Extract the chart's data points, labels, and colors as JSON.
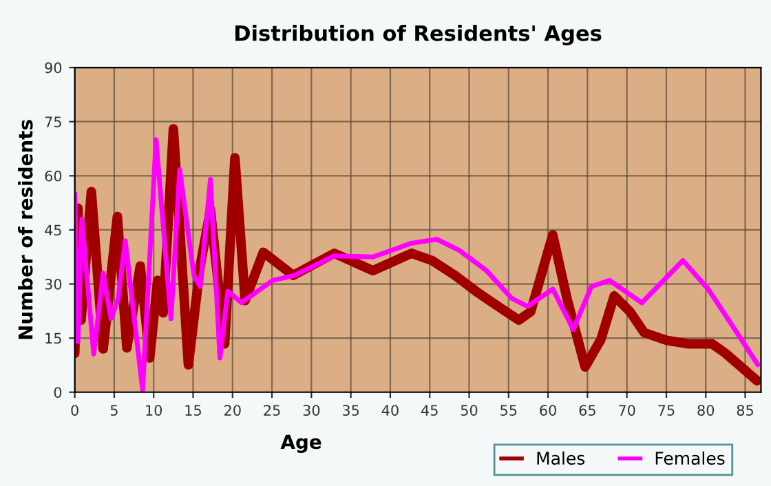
{
  "chart_data": {
    "type": "line",
    "title": "Distribution of Residents' Ages",
    "xlabel": "Age",
    "ylabel": "Number of residents",
    "xlim": [
      0,
      87
    ],
    "xticks": [
      0,
      5,
      10,
      15,
      20,
      25,
      30,
      35,
      40,
      45,
      50,
      55,
      60,
      65,
      70,
      75,
      80,
      85
    ],
    "ylim": [
      0,
      90
    ],
    "yticks": [
      0,
      15,
      30,
      45,
      60,
      75,
      90
    ],
    "grid": true,
    "legend": "bottom",
    "line_style": "solid",
    "series": [
      {
        "name": "Males",
        "color": "#a00000",
        "x": [
          0,
          0.4,
          0.8,
          2.1,
          3.6,
          5.4,
          6.6,
          8.3,
          9.5,
          10.5,
          11.2,
          12.5,
          14.4,
          15.9,
          17.2,
          19,
          20.3,
          21.6,
          23.9,
          27.7,
          32.9,
          37.8,
          42.7,
          45.3,
          48.2,
          51.1,
          53.4,
          56.3,
          57.8,
          60.6,
          62.4,
          64.7,
          66.7,
          68.4,
          70.4,
          72.2,
          75,
          77.9,
          80.8,
          82.5,
          86.5
        ],
        "values": [
          10.8,
          51,
          20,
          55.6,
          12,
          48.7,
          12.3,
          35,
          9.5,
          31,
          22,
          73,
          7.6,
          35,
          50.5,
          13.4,
          65,
          25.4,
          38.8,
          32.4,
          38.5,
          33.7,
          38.5,
          36.5,
          32.4,
          27.6,
          24.2,
          20,
          22.3,
          43.6,
          26,
          7,
          14.6,
          26.7,
          22.3,
          16.5,
          14.4,
          13.4,
          13.4,
          10.8,
          3.2
        ]
      },
      {
        "name": "Females",
        "color": "#ff00ff",
        "x": [
          0,
          0.4,
          0.9,
          2.4,
          3.6,
          4.6,
          5.5,
          6.4,
          8.6,
          10.3,
          12.2,
          13.3,
          15.1,
          15.9,
          17.2,
          18.4,
          19.4,
          20.5,
          21.1,
          22.8,
          25.1,
          27.9,
          32.9,
          37.8,
          42.7,
          45.9,
          48.7,
          52.2,
          55.4,
          57.4,
          60.6,
          63.2,
          65.5,
          67.8,
          71.9,
          77.1,
          80.3,
          83.2,
          86.6
        ],
        "values": [
          55,
          14,
          48,
          10.6,
          33,
          20.4,
          26,
          42,
          0.6,
          70,
          20.4,
          61.7,
          32.4,
          29.3,
          59,
          9.5,
          28,
          26,
          24.8,
          27.4,
          31,
          32.4,
          37.8,
          37.5,
          41.3,
          42.4,
          39.4,
          33.7,
          26,
          23.8,
          28.6,
          17.4,
          29.3,
          31,
          24.8,
          36.5,
          28.6,
          19,
          7.6
        ]
      }
    ]
  }
}
